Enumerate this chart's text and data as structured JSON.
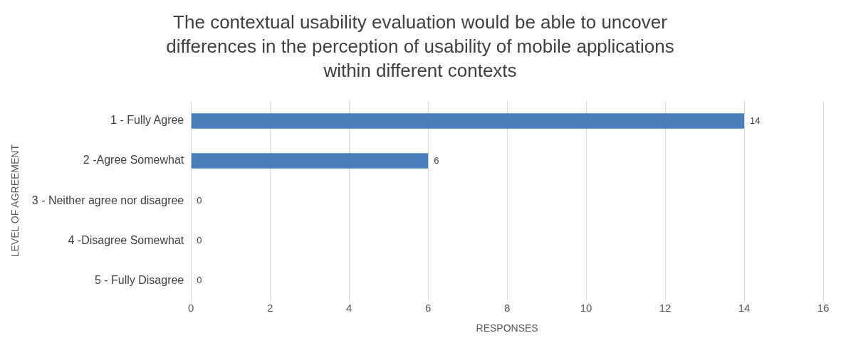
{
  "chart_data": {
    "type": "bar",
    "orientation": "horizontal",
    "title": "The contextual usability evaluation would be able to uncover differences in the perception of usability of mobile applications within different contexts",
    "categories": [
      "1 - Fully Agree",
      "2 -Agree Somewhat",
      "3 - Neither agree nor disagree",
      "4 -Disagree Somewhat",
      "5 - Fully Disagree"
    ],
    "values": [
      14,
      6,
      0,
      0,
      0
    ],
    "color": "#4a7ebb",
    "xlim": [
      0,
      16
    ],
    "xticks": [
      0,
      2,
      4,
      6,
      8,
      10,
      12,
      14,
      16
    ],
    "xlabel": "RESPONSES",
    "ylabel": "LEVEL OF AGREEMENT",
    "grid": "x",
    "data_labels": true
  }
}
